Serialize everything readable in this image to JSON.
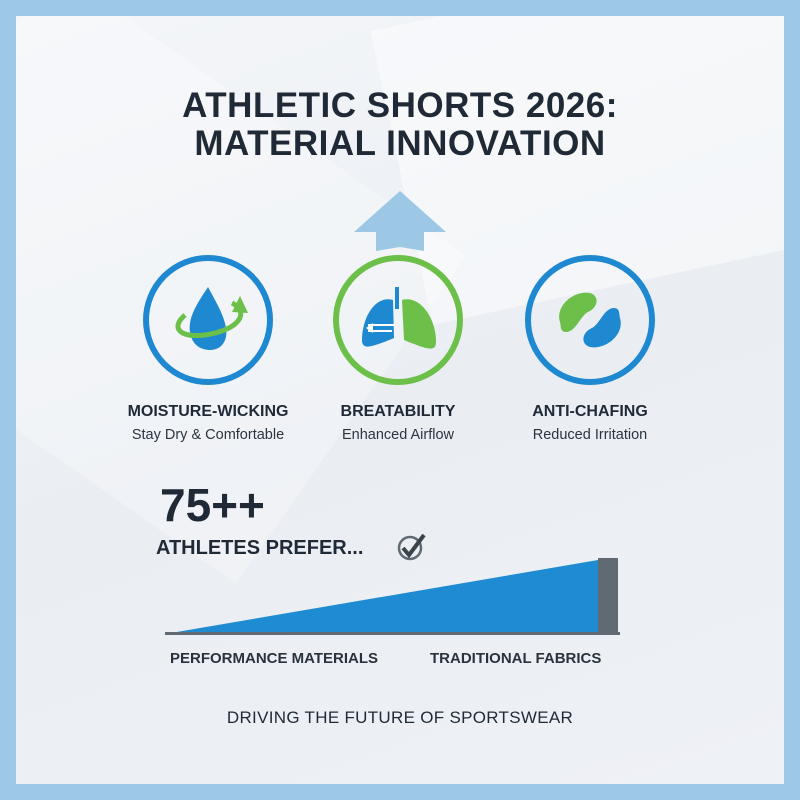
{
  "title": {
    "line1": "ATHLETIC SHORTS 2026:",
    "line2": "MATERIAL INNOVATION"
  },
  "features": [
    {
      "heading": "MOISTURE-WICKING",
      "subtitle": "Stay Dry & Comfortable",
      "icon": "water-drop-cycle-icon",
      "ring_color": "#1e88d0"
    },
    {
      "heading": "BREATABILITY",
      "subtitle": "Enhanced Airflow",
      "icon": "lungs-airflow-icon",
      "ring_color": "#6cc04a"
    },
    {
      "heading": "ANTI-CHAFING",
      "subtitle": "Reduced Irritation",
      "icon": "interlocking-shapes-icon",
      "ring_color": "#1e88d0"
    }
  ],
  "stat": {
    "value": "75++",
    "label": "ATHLETES PREFER...",
    "icon": "check-circle-icon"
  },
  "comparison": {
    "left_label": "PERFORMANCE MATERIALS",
    "right_label": "TRADITIONAL FABRICS",
    "primary_color": "#1f8bd2",
    "secondary_color": "#5f6a72"
  },
  "footer": "DRIVING THE FUTURE OF SPORTSWEAR",
  "colors": {
    "frame": "#9ec9e6",
    "text": "#1f2a36",
    "blue": "#1e88d0",
    "green": "#6cc04a",
    "arrow": "#9cc8e6"
  }
}
